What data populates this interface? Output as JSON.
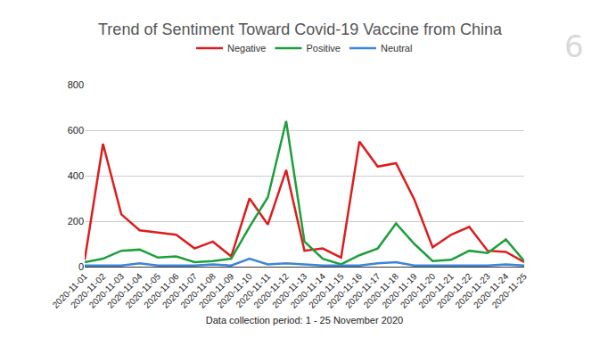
{
  "chart_data": {
    "type": "line",
    "title": "Trend of Sentiment Toward Covid-19 Vaccine from China",
    "x_label": "Data collection period: 1 - 25 November 2020",
    "annotations": [
      "6"
    ],
    "categories": [
      "2020-11-01",
      "2020-11-02",
      "2020-11-03",
      "2020-11-04",
      "2020-11-05",
      "2020-11-06",
      "2020-11-07",
      "2020-11-08",
      "2020-11-09",
      "2020-11-10",
      "2020-11-11",
      "2020-11-12",
      "2020-11-13",
      "2020-11-14",
      "2020-11-15",
      "2020-11-16",
      "2020-11-17",
      "2020-11-18",
      "2020-11-19",
      "2020-11-20",
      "2020-11-21",
      "2020-11-22",
      "2020-11-23",
      "2020-11-24",
      "2020-11-25"
    ],
    "series": [
      {
        "name": "Negative",
        "color": "#dd1d1d",
        "values": [
          30,
          540,
          230,
          160,
          150,
          140,
          80,
          110,
          45,
          300,
          185,
          425,
          70,
          80,
          40,
          550,
          440,
          455,
          295,
          85,
          140,
          175,
          70,
          65,
          20
        ]
      },
      {
        "name": "Positive",
        "color": "#1e9e3c",
        "values": [
          20,
          35,
          70,
          75,
          40,
          45,
          20,
          25,
          35,
          175,
          305,
          640,
          110,
          35,
          10,
          50,
          80,
          190,
          100,
          25,
          30,
          70,
          60,
          120,
          25
        ]
      },
      {
        "name": "Neutral",
        "color": "#3d85d8",
        "values": [
          5,
          5,
          5,
          15,
          5,
          5,
          5,
          10,
          5,
          35,
          10,
          15,
          10,
          5,
          5,
          5,
          15,
          20,
          5,
          5,
          5,
          5,
          5,
          10,
          5
        ]
      }
    ],
    "ylim": [
      0,
      800
    ],
    "yticks": [
      0,
      200,
      400,
      600,
      800
    ],
    "grid": true,
    "legend": "top"
  }
}
